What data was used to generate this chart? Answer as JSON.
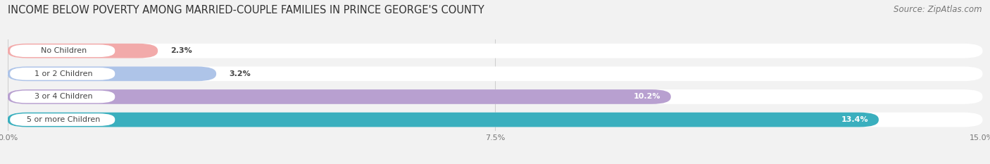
{
  "title": "INCOME BELOW POVERTY AMONG MARRIED-COUPLE FAMILIES IN PRINCE GEORGE'S COUNTY",
  "source": "Source: ZipAtlas.com",
  "categories": [
    "No Children",
    "1 or 2 Children",
    "3 or 4 Children",
    "5 or more Children"
  ],
  "values": [
    2.3,
    3.2,
    10.2,
    13.4
  ],
  "bar_colors": [
    "#f2aaaa",
    "#aec4e8",
    "#b8a0d0",
    "#3aafbe"
  ],
  "label_colors": [
    "#555555",
    "#555555",
    "#ffffff",
    "#ffffff"
  ],
  "value_colors": [
    "#555555",
    "#555555",
    "#ffffff",
    "#ffffff"
  ],
  "xlim": [
    0,
    15.0
  ],
  "xticks": [
    0.0,
    7.5,
    15.0
  ],
  "xtick_labels": [
    "0.0%",
    "7.5%",
    "15.0%"
  ],
  "background_color": "#f2f2f2",
  "bar_bg_color": "#e4e4e4",
  "row_bg_color": "#ffffff",
  "title_fontsize": 10.5,
  "source_fontsize": 8.5,
  "label_fontsize": 8,
  "value_fontsize": 8,
  "tick_fontsize": 8,
  "bar_height": 0.62
}
